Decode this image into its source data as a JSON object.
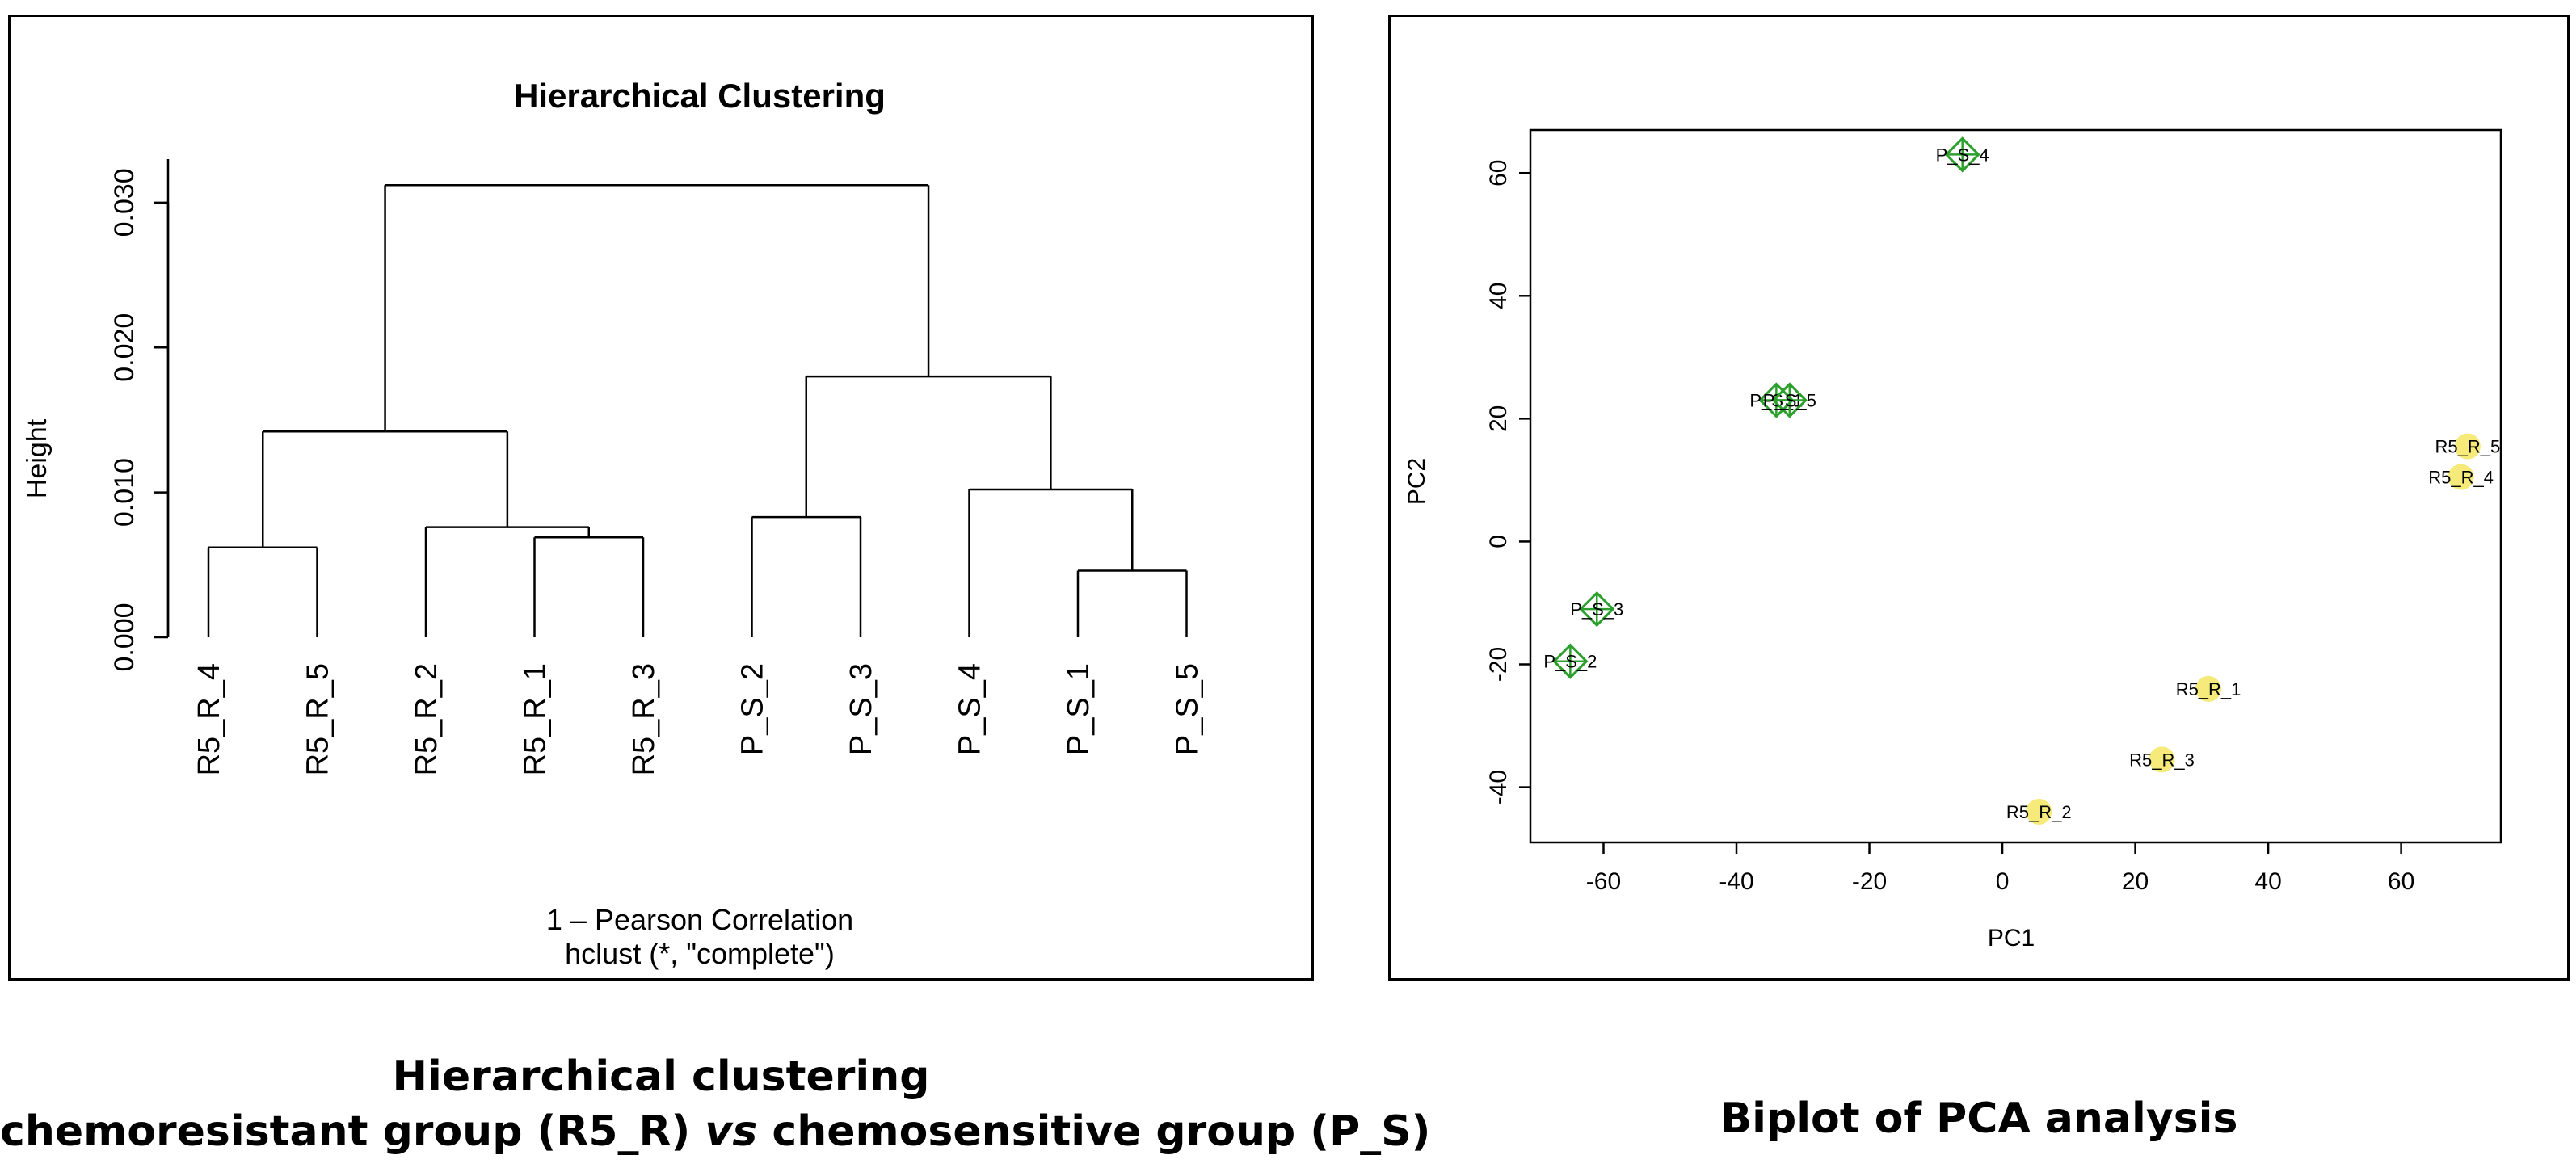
{
  "chart_data": [
    {
      "type": "dendrogram",
      "title": "Hierarchical Clustering",
      "ylabel": "Height",
      "xlabel": "1 – Pearson Correlation",
      "sublabel": "hclust (*, \"complete\")",
      "ylim": [
        0,
        0.033
      ],
      "yticks": [
        "0.000",
        "0.010",
        "0.020",
        "0.030"
      ],
      "ytick_values": [
        0.0,
        0.01,
        0.02,
        0.03
      ],
      "leaves": [
        "R5_R_4",
        "R5_R_5",
        "R5_R_2",
        "R5_R_1",
        "R5_R_3",
        "P_S_2",
        "P_S_3",
        "P_S_4",
        "P_S_1",
        "P_S_5"
      ],
      "merges": [
        {
          "left": "R5_R_4",
          "right": "R5_R_5",
          "height": 0.0062
        },
        {
          "left": "R5_R_1",
          "right": "R5_R_3",
          "height": 0.0069
        },
        {
          "left": "R5_R_2",
          "right": "m2",
          "height": 0.0076
        },
        {
          "left": "m1",
          "right": "m3",
          "height": 0.0142
        },
        {
          "left": "P_S_2",
          "right": "P_S_3",
          "height": 0.0083
        },
        {
          "left": "P_S_1",
          "right": "P_S_5",
          "height": 0.0046
        },
        {
          "left": "P_S_4",
          "right": "m6",
          "height": 0.0102
        },
        {
          "left": "m5",
          "right": "m7",
          "height": 0.018
        },
        {
          "left": "m4",
          "right": "m8",
          "height": 0.0312
        }
      ]
    },
    {
      "type": "scatter",
      "xlabel": "PC1",
      "ylabel": "PC2",
      "xlim": [
        -71,
        75
      ],
      "ylim": [
        -49,
        67
      ],
      "xticks": [
        -60,
        -40,
        -20,
        0,
        20,
        40,
        60
      ],
      "yticks": [
        -40,
        -20,
        0,
        20,
        40,
        60
      ],
      "groups": [
        {
          "color": "#2ca02c",
          "marker": "diamond",
          "label_offset": "right"
        },
        {
          "color": "#f5e663",
          "marker": "circle",
          "label_offset": "left"
        }
      ],
      "points": [
        {
          "label": "P_S_4",
          "x": -6,
          "y": 63,
          "group": 0
        },
        {
          "label": "P_S_1",
          "x": -34,
          "y": 23,
          "group": 0
        },
        {
          "label": "P_S_5",
          "x": -32,
          "y": 23,
          "group": 0
        },
        {
          "label": "P_S_3",
          "x": -61,
          "y": -11,
          "group": 0
        },
        {
          "label": "P_S_2",
          "x": -65,
          "y": -19.5,
          "group": 0
        },
        {
          "label": "R5_R_5",
          "x": 70,
          "y": 15.5,
          "group": 1
        },
        {
          "label": "R5_R_4",
          "x": 69,
          "y": 10.5,
          "group": 1
        },
        {
          "label": "R5_R_1",
          "x": 31,
          "y": -24,
          "group": 1
        },
        {
          "label": "R5_R_3",
          "x": 24,
          "y": -35.5,
          "group": 1
        },
        {
          "label": "R5_R_2",
          "x": 5.5,
          "y": -44,
          "group": 1
        }
      ]
    }
  ],
  "captions": {
    "left_line1": "Hierarchical clustering",
    "left_line2_a": "chemoresistant group (R5_R) ",
    "left_line2_b": "vs",
    "left_line2_c": " chemosensitive group (P_S)",
    "right": "Biplot of PCA analysis"
  }
}
